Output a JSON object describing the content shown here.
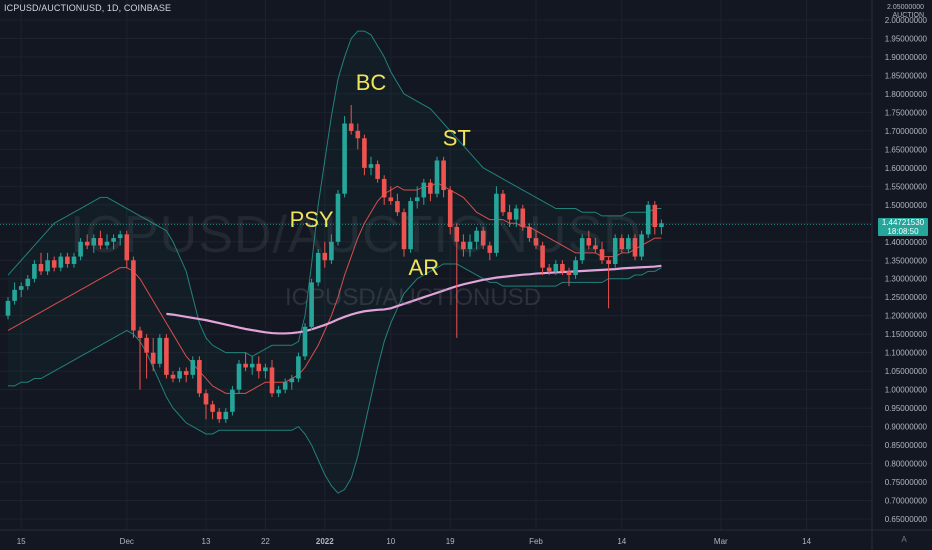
{
  "header": {
    "symbol_line": "ICPUSD/AUCTIONUSD, 1D, COINBASE"
  },
  "watermark": {
    "big": "ICPUSD/AUCTIONUSD",
    "small": "ICPUSD/AUCTIONUSD"
  },
  "axis_top": {
    "line1": "2.05000000",
    "line2": "AUCTION"
  },
  "price_badge": {
    "price": "1.44721530",
    "time": "18:08:50"
  },
  "a_button": "A",
  "colors": {
    "background": "#131722",
    "up": "#26a69a",
    "down": "#ef5350",
    "ma_short": "#ef5350",
    "ma_long": "#e1a3d9",
    "bands": "#26a69a",
    "annotation": "#f2e35c",
    "grid": "#1e222d"
  },
  "chart_data": {
    "type": "candlestick",
    "title": "ICPUSD/AUCTIONUSD, 1D, COINBASE",
    "y_axis": {
      "min": 0.65,
      "max": 2.0,
      "ticks": [
        2.0,
        1.95,
        1.9,
        1.85,
        1.8,
        1.75,
        1.7,
        1.65,
        1.6,
        1.55,
        1.5,
        1.45,
        1.4,
        1.35,
        1.3,
        1.25,
        1.2,
        1.15,
        1.1,
        1.05,
        1.0,
        0.95,
        0.9,
        0.85,
        0.8,
        0.75,
        0.7,
        0.65
      ],
      "tick_labels": [
        "2.00000000",
        "1.95000000",
        "1.90000000",
        "1.85000000",
        "1.80000000",
        "1.75000000",
        "1.70000000",
        "1.65000000",
        "1.60000000",
        "1.55000000",
        "1.50000000",
        "1.45000000",
        "1.40000000",
        "1.35000000",
        "1.30000000",
        "1.25000000",
        "1.20000000",
        "1.15000000",
        "1.10000000",
        "1.05000000",
        "1.00000000",
        "0.95000000",
        "0.90000000",
        "0.85000000",
        "0.80000000",
        "0.75000000",
        "0.70000000",
        "0.65000000"
      ]
    },
    "x_axis": {
      "tick_labels": [
        {
          "label": "15",
          "index": 2
        },
        {
          "label": "Dec",
          "index": 18
        },
        {
          "label": "13",
          "index": 30
        },
        {
          "label": "22",
          "index": 39
        },
        {
          "label": "2022",
          "index": 48
        },
        {
          "label": "10",
          "index": 58
        },
        {
          "label": "19",
          "index": 67
        },
        {
          "label": "Feb",
          "index": 80
        },
        {
          "label": "14",
          "index": 93
        },
        {
          "label": "Mar",
          "index": 108
        },
        {
          "label": "14",
          "index": 121
        }
      ]
    },
    "candles": [
      [
        1.2,
        1.25,
        1.19,
        1.24
      ],
      [
        1.24,
        1.29,
        1.23,
        1.27
      ],
      [
        1.27,
        1.29,
        1.25,
        1.28
      ],
      [
        1.28,
        1.31,
        1.27,
        1.3
      ],
      [
        1.3,
        1.35,
        1.29,
        1.34
      ],
      [
        1.34,
        1.37,
        1.31,
        1.32
      ],
      [
        1.32,
        1.37,
        1.31,
        1.35
      ],
      [
        1.35,
        1.36,
        1.32,
        1.33
      ],
      [
        1.33,
        1.37,
        1.32,
        1.36
      ],
      [
        1.36,
        1.37,
        1.33,
        1.34
      ],
      [
        1.34,
        1.37,
        1.33,
        1.36
      ],
      [
        1.36,
        1.41,
        1.35,
        1.4
      ],
      [
        1.4,
        1.42,
        1.38,
        1.39
      ],
      [
        1.39,
        1.42,
        1.37,
        1.41
      ],
      [
        1.41,
        1.43,
        1.38,
        1.39
      ],
      [
        1.39,
        1.42,
        1.38,
        1.4
      ],
      [
        1.4,
        1.42,
        1.38,
        1.41
      ],
      [
        1.41,
        1.43,
        1.39,
        1.42
      ],
      [
        1.42,
        1.43,
        1.33,
        1.35
      ],
      [
        1.35,
        1.36,
        1.14,
        1.16
      ],
      [
        1.16,
        1.17,
        1.0,
        1.14
      ],
      [
        1.14,
        1.15,
        1.03,
        1.1
      ],
      [
        1.1,
        1.14,
        1.05,
        1.07
      ],
      [
        1.07,
        1.15,
        1.06,
        1.14
      ],
      [
        1.14,
        1.15,
        1.03,
        1.04
      ],
      [
        1.04,
        1.05,
        1.02,
        1.03
      ],
      [
        1.03,
        1.06,
        1.02,
        1.05
      ],
      [
        1.05,
        1.06,
        1.02,
        1.04
      ],
      [
        1.04,
        1.09,
        1.03,
        1.08
      ],
      [
        1.08,
        1.09,
        0.98,
        0.99
      ],
      [
        0.99,
        1.0,
        0.92,
        0.96
      ],
      [
        0.96,
        0.97,
        0.92,
        0.94
      ],
      [
        0.94,
        0.95,
        0.91,
        0.92
      ],
      [
        0.92,
        0.95,
        0.91,
        0.94
      ],
      [
        0.94,
        1.01,
        0.93,
        1.0
      ],
      [
        1.0,
        1.08,
        0.99,
        1.07
      ],
      [
        1.07,
        1.1,
        1.05,
        1.06
      ],
      [
        1.06,
        1.09,
        1.04,
        1.07
      ],
      [
        1.07,
        1.09,
        1.03,
        1.05
      ],
      [
        1.05,
        1.07,
        1.03,
        1.06
      ],
      [
        1.06,
        1.08,
        0.98,
        0.99
      ],
      [
        0.99,
        1.01,
        0.98,
        1.0
      ],
      [
        1.0,
        1.03,
        0.99,
        1.02
      ],
      [
        1.02,
        1.04,
        1.0,
        1.03
      ],
      [
        1.03,
        1.1,
        1.02,
        1.09
      ],
      [
        1.09,
        1.18,
        1.08,
        1.17
      ],
      [
        1.17,
        1.3,
        1.16,
        1.29
      ],
      [
        1.29,
        1.38,
        1.28,
        1.37
      ],
      [
        1.37,
        1.4,
        1.33,
        1.35
      ],
      [
        1.35,
        1.42,
        1.34,
        1.4
      ],
      [
        1.4,
        1.54,
        1.39,
        1.53
      ],
      [
        1.53,
        1.74,
        1.52,
        1.72
      ],
      [
        1.72,
        1.77,
        1.69,
        1.7
      ],
      [
        1.7,
        1.72,
        1.65,
        1.68
      ],
      [
        1.68,
        1.69,
        1.58,
        1.6
      ],
      [
        1.6,
        1.63,
        1.58,
        1.61
      ],
      [
        1.61,
        1.62,
        1.56,
        1.57
      ],
      [
        1.57,
        1.58,
        1.5,
        1.52
      ],
      [
        1.52,
        1.55,
        1.5,
        1.51
      ],
      [
        1.51,
        1.53,
        1.47,
        1.48
      ],
      [
        1.48,
        1.49,
        1.36,
        1.38
      ],
      [
        1.38,
        1.52,
        1.37,
        1.51
      ],
      [
        1.51,
        1.55,
        1.49,
        1.52
      ],
      [
        1.52,
        1.57,
        1.5,
        1.56
      ],
      [
        1.56,
        1.57,
        1.51,
        1.53
      ],
      [
        1.53,
        1.63,
        1.52,
        1.62
      ],
      [
        1.62,
        1.63,
        1.52,
        1.54
      ],
      [
        1.54,
        1.55,
        1.42,
        1.44
      ],
      [
        1.44,
        1.45,
        1.14,
        1.4
      ],
      [
        1.4,
        1.42,
        1.36,
        1.38
      ],
      [
        1.38,
        1.42,
        1.36,
        1.4
      ],
      [
        1.4,
        1.44,
        1.38,
        1.43
      ],
      [
        1.43,
        1.44,
        1.38,
        1.39
      ],
      [
        1.39,
        1.4,
        1.35,
        1.37
      ],
      [
        1.37,
        1.55,
        1.36,
        1.53
      ],
      [
        1.53,
        1.54,
        1.47,
        1.48
      ],
      [
        1.48,
        1.5,
        1.44,
        1.46
      ],
      [
        1.46,
        1.5,
        1.44,
        1.49
      ],
      [
        1.49,
        1.5,
        1.43,
        1.44
      ],
      [
        1.44,
        1.45,
        1.4,
        1.41
      ],
      [
        1.41,
        1.43,
        1.38,
        1.39
      ],
      [
        1.39,
        1.4,
        1.31,
        1.33
      ],
      [
        1.33,
        1.34,
        1.31,
        1.32
      ],
      [
        1.32,
        1.35,
        1.31,
        1.34
      ],
      [
        1.34,
        1.35,
        1.31,
        1.32
      ],
      [
        1.32,
        1.33,
        1.28,
        1.31
      ],
      [
        1.31,
        1.36,
        1.3,
        1.35
      ],
      [
        1.35,
        1.42,
        1.34,
        1.41
      ],
      [
        1.41,
        1.43,
        1.38,
        1.39
      ],
      [
        1.39,
        1.41,
        1.37,
        1.38
      ],
      [
        1.38,
        1.4,
        1.34,
        1.35
      ],
      [
        1.35,
        1.36,
        1.22,
        1.34
      ],
      [
        1.34,
        1.42,
        1.33,
        1.41
      ],
      [
        1.41,
        1.42,
        1.37,
        1.38
      ],
      [
        1.38,
        1.42,
        1.37,
        1.41
      ],
      [
        1.41,
        1.42,
        1.35,
        1.36
      ],
      [
        1.36,
        1.43,
        1.35,
        1.42
      ],
      [
        1.42,
        1.51,
        1.41,
        1.5
      ],
      [
        1.5,
        1.51,
        1.42,
        1.44
      ],
      [
        1.44,
        1.46,
        1.42,
        1.45
      ]
    ],
    "ma_short": [
      1.16,
      1.17,
      1.18,
      1.19,
      1.2,
      1.21,
      1.22,
      1.23,
      1.24,
      1.25,
      1.26,
      1.27,
      1.28,
      1.29,
      1.3,
      1.31,
      1.32,
      1.33,
      1.33,
      1.32,
      1.3,
      1.27,
      1.24,
      1.21,
      1.18,
      1.15,
      1.12,
      1.09,
      1.07,
      1.05,
      1.03,
      1.01,
      1.0,
      0.99,
      0.99,
      0.99,
      0.99,
      1.0,
      1.01,
      1.02,
      1.02,
      1.02,
      1.02,
      1.03,
      1.04,
      1.06,
      1.09,
      1.12,
      1.16,
      1.2,
      1.25,
      1.31,
      1.36,
      1.41,
      1.45,
      1.48,
      1.51,
      1.53,
      1.54,
      1.55,
      1.54,
      1.54,
      1.54,
      1.55,
      1.55,
      1.56,
      1.55,
      1.54,
      1.53,
      1.52,
      1.5,
      1.48,
      1.47,
      1.46,
      1.46,
      1.46,
      1.45,
      1.45,
      1.44,
      1.44,
      1.43,
      1.42,
      1.41,
      1.4,
      1.39,
      1.38,
      1.37,
      1.37,
      1.37,
      1.37,
      1.36,
      1.36,
      1.36,
      1.37,
      1.37,
      1.38,
      1.39,
      1.4,
      1.41,
      1.41
    ],
    "ma_long": {
      "start_index": 24,
      "values": [
        1.205,
        1.203,
        1.2,
        1.197,
        1.194,
        1.191,
        1.188,
        1.184,
        1.18,
        1.176,
        1.172,
        1.168,
        1.164,
        1.161,
        1.158,
        1.155,
        1.153,
        1.152,
        1.152,
        1.153,
        1.155,
        1.158,
        1.163,
        1.169,
        1.175,
        1.182,
        1.19,
        1.197,
        1.203,
        1.208,
        1.212,
        1.214,
        1.216,
        1.217,
        1.22,
        1.226,
        1.232,
        1.238,
        1.244,
        1.25,
        1.256,
        1.262,
        1.268,
        1.274,
        1.28,
        1.285,
        1.289,
        1.293,
        1.297,
        1.3,
        1.303,
        1.305,
        1.307,
        1.309,
        1.311,
        1.312,
        1.314,
        1.315,
        1.316,
        1.317,
        1.318,
        1.319,
        1.32,
        1.321,
        1.322,
        1.323,
        1.324,
        1.325,
        1.326,
        1.328,
        1.329,
        1.33,
        1.331,
        1.332,
        1.333,
        1.335
      ]
    },
    "band_upper": [
      1.31,
      1.33,
      1.35,
      1.37,
      1.39,
      1.41,
      1.43,
      1.45,
      1.46,
      1.47,
      1.48,
      1.49,
      1.5,
      1.51,
      1.52,
      1.52,
      1.51,
      1.5,
      1.49,
      1.48,
      1.47,
      1.46,
      1.45,
      1.44,
      1.43,
      1.4,
      1.36,
      1.32,
      1.25,
      1.18,
      1.14,
      1.12,
      1.11,
      1.1,
      1.1,
      1.1,
      1.1,
      1.09,
      1.1,
      1.11,
      1.12,
      1.12,
      1.12,
      1.12,
      1.13,
      1.2,
      1.34,
      1.5,
      1.62,
      1.74,
      1.84,
      1.9,
      1.95,
      1.97,
      1.97,
      1.96,
      1.93,
      1.9,
      1.86,
      1.83,
      1.8,
      1.79,
      1.78,
      1.77,
      1.76,
      1.74,
      1.72,
      1.7,
      1.68,
      1.66,
      1.64,
      1.62,
      1.6,
      1.59,
      1.58,
      1.57,
      1.56,
      1.55,
      1.54,
      1.53,
      1.52,
      1.51,
      1.5,
      1.49,
      1.49,
      1.49,
      1.49,
      1.48,
      1.48,
      1.48,
      1.47,
      1.47,
      1.47,
      1.47,
      1.48,
      1.48,
      1.48,
      1.48,
      1.49,
      1.49
    ],
    "band_lower": [
      1.01,
      1.01,
      1.02,
      1.02,
      1.03,
      1.03,
      1.04,
      1.05,
      1.06,
      1.07,
      1.08,
      1.09,
      1.1,
      1.11,
      1.12,
      1.13,
      1.14,
      1.15,
      1.16,
      1.15,
      1.13,
      1.1,
      1.06,
      1.02,
      0.98,
      0.95,
      0.93,
      0.91,
      0.9,
      0.89,
      0.88,
      0.88,
      0.89,
      0.89,
      0.89,
      0.89,
      0.89,
      0.89,
      0.89,
      0.89,
      0.89,
      0.89,
      0.89,
      0.89,
      0.9,
      0.88,
      0.85,
      0.81,
      0.77,
      0.74,
      0.72,
      0.73,
      0.76,
      0.82,
      0.9,
      0.98,
      1.06,
      1.13,
      1.18,
      1.22,
      1.26,
      1.28,
      1.3,
      1.31,
      1.32,
      1.33,
      1.34,
      1.34,
      1.34,
      1.33,
      1.32,
      1.31,
      1.3,
      1.29,
      1.29,
      1.28,
      1.28,
      1.28,
      1.28,
      1.28,
      1.28,
      1.28,
      1.28,
      1.28,
      1.29,
      1.29,
      1.29,
      1.29,
      1.29,
      1.29,
      1.29,
      1.3,
      1.3,
      1.3,
      1.3,
      1.31,
      1.31,
      1.32,
      1.32,
      1.33
    ],
    "annotations": [
      {
        "text": "BC",
        "index": 55,
        "price": 1.81
      },
      {
        "text": "PSY",
        "index": 46,
        "price": 1.44
      },
      {
        "text": "ST",
        "index": 68,
        "price": 1.66
      },
      {
        "text": "AR",
        "index": 63,
        "price": 1.31
      }
    ],
    "current_price_line": 1.4472
  }
}
